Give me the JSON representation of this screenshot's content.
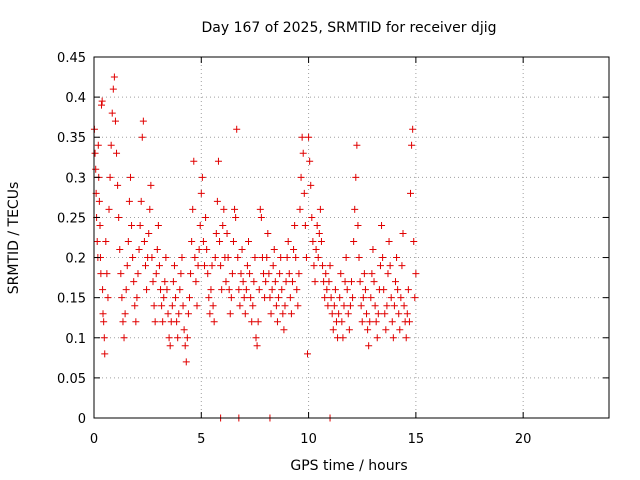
{
  "chart_data": {
    "type": "scatter",
    "title": "Day 167 of 2025, SRMTID for receiver djig",
    "xlabel": "GPS time / hours",
    "ylabel": "SRMTID / TECUs",
    "xlim": [
      0,
      24
    ],
    "ylim": [
      0,
      0.45
    ],
    "x_ticks": [
      0,
      5,
      10,
      15,
      20
    ],
    "x_tick_labels": [
      "0",
      "5",
      "10",
      "15",
      "20"
    ],
    "y_ticks": [
      0,
      0.05,
      0.1,
      0.15,
      0.2,
      0.25,
      0.3,
      0.35,
      0.4,
      0.45
    ],
    "y_tick_labels": [
      "0",
      "0.05",
      "0.1",
      "0.15",
      "0.2",
      "0.25",
      "0.3",
      "0.35",
      "0.4",
      "0.45"
    ],
    "grid": true,
    "marker": "plus",
    "colors": {
      "points": "#e00000",
      "grid": "#a0a0a0",
      "frame": "#000000"
    },
    "series": [
      {
        "points": [
          [
            0.02,
            0.36
          ],
          [
            0.05,
            0.33
          ],
          [
            0.08,
            0.31
          ],
          [
            0.1,
            0.28
          ],
          [
            0.12,
            0.25
          ],
          [
            0.15,
            0.22
          ],
          [
            0.18,
            0.2
          ],
          [
            0.2,
            0.34
          ],
          [
            0.22,
            0.3
          ],
          [
            0.25,
            0.27
          ],
          [
            0.28,
            0.24
          ],
          [
            0.3,
            0.2
          ],
          [
            0.32,
            0.18
          ],
          [
            0.35,
            0.39
          ],
          [
            0.38,
            0.395
          ],
          [
            0.4,
            0.16
          ],
          [
            0.42,
            0.13
          ],
          [
            0.45,
            0.12
          ],
          [
            0.48,
            0.1
          ],
          [
            0.5,
            0.08
          ],
          [
            0.55,
            0.22
          ],
          [
            0.6,
            0.18
          ],
          [
            0.65,
            0.15
          ],
          [
            0.7,
            0.26
          ],
          [
            0.75,
            0.3
          ],
          [
            0.8,
            0.34
          ],
          [
            0.85,
            0.38
          ],
          [
            0.9,
            0.41
          ],
          [
            0.95,
            0.425
          ],
          [
            1.0,
            0.37
          ],
          [
            1.05,
            0.33
          ],
          [
            1.1,
            0.29
          ],
          [
            1.15,
            0.25
          ],
          [
            1.2,
            0.21
          ],
          [
            1.25,
            0.18
          ],
          [
            1.3,
            0.15
          ],
          [
            1.35,
            0.12
          ],
          [
            1.4,
            0.1
          ],
          [
            1.45,
            0.13
          ],
          [
            1.5,
            0.16
          ],
          [
            1.55,
            0.19
          ],
          [
            1.6,
            0.22
          ],
          [
            1.65,
            0.27
          ],
          [
            1.7,
            0.3
          ],
          [
            1.75,
            0.24
          ],
          [
            1.8,
            0.2
          ],
          [
            1.85,
            0.17
          ],
          [
            1.9,
            0.14
          ],
          [
            1.95,
            0.12
          ],
          [
            2.0,
            0.15
          ],
          [
            2.05,
            0.18
          ],
          [
            2.1,
            0.21
          ],
          [
            2.15,
            0.24
          ],
          [
            2.2,
            0.27
          ],
          [
            2.25,
            0.35
          ],
          [
            2.3,
            0.37
          ],
          [
            2.35,
            0.22
          ],
          [
            2.4,
            0.19
          ],
          [
            2.45,
            0.16
          ],
          [
            2.5,
            0.2
          ],
          [
            2.55,
            0.23
          ],
          [
            2.6,
            0.26
          ],
          [
            2.65,
            0.29
          ],
          [
            2.7,
            0.2
          ],
          [
            2.75,
            0.17
          ],
          [
            2.8,
            0.14
          ],
          [
            2.85,
            0.12
          ],
          [
            2.9,
            0.18
          ],
          [
            2.95,
            0.21
          ],
          [
            3.0,
            0.24
          ],
          [
            3.05,
            0.19
          ],
          [
            3.1,
            0.16
          ],
          [
            3.15,
            0.14
          ],
          [
            3.2,
            0.12
          ],
          [
            3.25,
            0.15
          ],
          [
            3.3,
            0.17
          ],
          [
            3.35,
            0.2
          ],
          [
            3.4,
            0.16
          ],
          [
            3.45,
            0.13
          ],
          [
            3.5,
            0.1
          ],
          [
            3.55,
            0.09
          ],
          [
            3.6,
            0.12
          ],
          [
            3.65,
            0.14
          ],
          [
            3.7,
            0.17
          ],
          [
            3.75,
            0.19
          ],
          [
            3.8,
            0.15
          ],
          [
            3.85,
            0.12
          ],
          [
            3.9,
            0.1
          ],
          [
            3.95,
            0.13
          ],
          [
            4.0,
            0.16
          ],
          [
            4.05,
            0.18
          ],
          [
            4.1,
            0.2
          ],
          [
            4.15,
            0.14
          ],
          [
            4.2,
            0.11
          ],
          [
            4.25,
            0.09
          ],
          [
            4.3,
            0.07
          ],
          [
            4.35,
            0.1
          ],
          [
            4.4,
            0.13
          ],
          [
            4.45,
            0.15
          ],
          [
            4.5,
            0.18
          ],
          [
            4.55,
            0.22
          ],
          [
            4.6,
            0.26
          ],
          [
            4.65,
            0.32
          ],
          [
            4.7,
            0.2
          ],
          [
            4.75,
            0.17
          ],
          [
            4.8,
            0.14
          ],
          [
            4.85,
            0.19
          ],
          [
            4.9,
            0.21
          ],
          [
            4.95,
            0.24
          ],
          [
            5.0,
            0.28
          ],
          [
            5.05,
            0.3
          ],
          [
            5.1,
            0.22
          ],
          [
            5.15,
            0.19
          ],
          [
            5.2,
            0.25
          ],
          [
            5.25,
            0.21
          ],
          [
            5.3,
            0.18
          ],
          [
            5.35,
            0.15
          ],
          [
            5.4,
            0.13
          ],
          [
            5.45,
            0.16
          ],
          [
            5.5,
            0.19
          ],
          [
            5.55,
            0.14
          ],
          [
            5.6,
            0.12
          ],
          [
            5.65,
            0.2
          ],
          [
            5.7,
            0.23
          ],
          [
            5.75,
            0.27
          ],
          [
            5.8,
            0.32
          ],
          [
            5.85,
            0.22
          ],
          [
            5.9,
            0.19
          ],
          [
            5.95,
            0.16
          ],
          [
            6.0,
            0.24
          ],
          [
            6.05,
            0.26
          ],
          [
            6.1,
            0.2
          ],
          [
            6.15,
            0.17
          ],
          [
            6.2,
            0.23
          ],
          [
            6.25,
            0.2
          ],
          [
            6.3,
            0.16
          ],
          [
            6.35,
            0.13
          ],
          [
            6.4,
            0.15
          ],
          [
            6.45,
            0.18
          ],
          [
            6.5,
            0.22
          ],
          [
            6.55,
            0.26
          ],
          [
            6.6,
            0.25
          ],
          [
            6.65,
            0.36
          ],
          [
            6.7,
            0.2
          ],
          [
            6.75,
            0.16
          ],
          [
            6.8,
            0.14
          ],
          [
            6.85,
            0.18
          ],
          [
            6.9,
            0.21
          ],
          [
            6.95,
            0.17
          ],
          [
            7.0,
            0.15
          ],
          [
            7.05,
            0.13
          ],
          [
            7.1,
            0.16
          ],
          [
            7.15,
            0.19
          ],
          [
            7.2,
            0.22
          ],
          [
            7.25,
            0.18
          ],
          [
            7.3,
            0.15
          ],
          [
            7.35,
            0.12
          ],
          [
            7.4,
            0.14
          ],
          [
            7.45,
            0.17
          ],
          [
            7.5,
            0.2
          ],
          [
            7.55,
            0.1
          ],
          [
            7.6,
            0.09
          ],
          [
            7.65,
            0.12
          ],
          [
            7.7,
            0.16
          ],
          [
            7.75,
            0.26
          ],
          [
            7.8,
            0.25
          ],
          [
            7.85,
            0.2
          ],
          [
            7.9,
            0.18
          ],
          [
            7.95,
            0.15
          ],
          [
            8.0,
            0.17
          ],
          [
            8.05,
            0.2
          ],
          [
            8.1,
            0.23
          ],
          [
            8.15,
            0.18
          ],
          [
            8.2,
            0.15
          ],
          [
            8.25,
            0.13
          ],
          [
            8.3,
            0.16
          ],
          [
            8.35,
            0.19
          ],
          [
            8.4,
            0.21
          ],
          [
            8.45,
            0.17
          ],
          [
            8.5,
            0.14
          ],
          [
            8.55,
            0.12
          ],
          [
            8.6,
            0.15
          ],
          [
            8.65,
            0.18
          ],
          [
            8.7,
            0.2
          ],
          [
            8.75,
            0.16
          ],
          [
            8.8,
            0.13
          ],
          [
            8.85,
            0.11
          ],
          [
            8.9,
            0.14
          ],
          [
            8.95,
            0.17
          ],
          [
            9.0,
            0.2
          ],
          [
            9.05,
            0.22
          ],
          [
            9.1,
            0.18
          ],
          [
            9.15,
            0.15
          ],
          [
            9.2,
            0.13
          ],
          [
            9.25,
            0.17
          ],
          [
            9.3,
            0.21
          ],
          [
            9.35,
            0.24
          ],
          [
            9.4,
            0.2
          ],
          [
            9.45,
            0.16
          ],
          [
            9.5,
            0.14
          ],
          [
            9.55,
            0.18
          ],
          [
            9.6,
            0.26
          ],
          [
            9.65,
            0.3
          ],
          [
            9.7,
            0.35
          ],
          [
            9.75,
            0.33
          ],
          [
            9.8,
            0.28
          ],
          [
            9.85,
            0.24
          ],
          [
            9.9,
            0.2
          ],
          [
            9.95,
            0.08
          ],
          [
            10.0,
            0.35
          ],
          [
            10.05,
            0.32
          ],
          [
            10.1,
            0.29
          ],
          [
            10.15,
            0.25
          ],
          [
            10.2,
            0.22
          ],
          [
            10.25,
            0.19
          ],
          [
            10.3,
            0.17
          ],
          [
            10.35,
            0.21
          ],
          [
            10.4,
            0.24
          ],
          [
            10.45,
            0.2
          ],
          [
            10.5,
            0.23
          ],
          [
            10.55,
            0.26
          ],
          [
            10.6,
            0.22
          ],
          [
            10.65,
            0.19
          ],
          [
            10.7,
            0.17
          ],
          [
            10.75,
            0.15
          ],
          [
            10.8,
            0.18
          ],
          [
            10.85,
            0.16
          ],
          [
            10.9,
            0.14
          ],
          [
            10.95,
            0.17
          ],
          [
            11.0,
            0.19
          ],
          [
            11.05,
            0.15
          ],
          [
            11.1,
            0.13
          ],
          [
            11.15,
            0.11
          ],
          [
            11.2,
            0.14
          ],
          [
            11.25,
            0.16
          ],
          [
            11.3,
            0.12
          ],
          [
            11.35,
            0.1
          ],
          [
            11.4,
            0.13
          ],
          [
            11.45,
            0.15
          ],
          [
            11.5,
            0.18
          ],
          [
            11.55,
            0.12
          ],
          [
            11.6,
            0.1
          ],
          [
            11.65,
            0.14
          ],
          [
            11.7,
            0.17
          ],
          [
            11.75,
            0.2
          ],
          [
            11.8,
            0.16
          ],
          [
            11.85,
            0.13
          ],
          [
            11.9,
            0.11
          ],
          [
            11.95,
            0.14
          ],
          [
            12.0,
            0.17
          ],
          [
            12.05,
            0.15
          ],
          [
            12.1,
            0.22
          ],
          [
            12.15,
            0.26
          ],
          [
            12.2,
            0.3
          ],
          [
            12.25,
            0.34
          ],
          [
            12.3,
            0.24
          ],
          [
            12.35,
            0.2
          ],
          [
            12.4,
            0.17
          ],
          [
            12.45,
            0.14
          ],
          [
            12.5,
            0.12
          ],
          [
            12.55,
            0.15
          ],
          [
            12.6,
            0.18
          ],
          [
            12.65,
            0.16
          ],
          [
            12.7,
            0.13
          ],
          [
            12.75,
            0.11
          ],
          [
            12.8,
            0.09
          ],
          [
            12.85,
            0.12
          ],
          [
            12.9,
            0.15
          ],
          [
            12.95,
            0.18
          ],
          [
            13.0,
            0.21
          ],
          [
            13.05,
            0.17
          ],
          [
            13.1,
            0.14
          ],
          [
            13.15,
            0.12
          ],
          [
            13.2,
            0.1
          ],
          [
            13.25,
            0.13
          ],
          [
            13.3,
            0.16
          ],
          [
            13.35,
            0.19
          ],
          [
            13.4,
            0.24
          ],
          [
            13.45,
            0.2
          ],
          [
            13.5,
            0.16
          ],
          [
            13.55,
            0.13
          ],
          [
            13.6,
            0.11
          ],
          [
            13.65,
            0.14
          ],
          [
            13.7,
            0.18
          ],
          [
            13.75,
            0.22
          ],
          [
            13.8,
            0.19
          ],
          [
            13.85,
            0.15
          ],
          [
            13.9,
            0.12
          ],
          [
            13.95,
            0.1
          ],
          [
            14.0,
            0.14
          ],
          [
            14.05,
            0.17
          ],
          [
            14.1,
            0.2
          ],
          [
            14.15,
            0.16
          ],
          [
            14.2,
            0.13
          ],
          [
            14.25,
            0.11
          ],
          [
            14.3,
            0.15
          ],
          [
            14.35,
            0.19
          ],
          [
            14.4,
            0.23
          ],
          [
            14.45,
            0.14
          ],
          [
            14.5,
            0.12
          ],
          [
            14.55,
            0.1
          ],
          [
            14.6,
            0.13
          ],
          [
            14.65,
            0.16
          ],
          [
            14.7,
            0.12
          ],
          [
            14.75,
            0.28
          ],
          [
            14.8,
            0.34
          ],
          [
            14.85,
            0.36
          ],
          [
            14.9,
            0.22
          ],
          [
            14.95,
            0.15
          ],
          [
            15.0,
            0.18
          ]
        ]
      },
      {
        "points": [
          [
            5.9,
            0.0
          ],
          [
            6.75,
            0.0
          ],
          [
            8.2,
            0.0
          ],
          [
            11.0,
            0.0
          ]
        ]
      }
    ]
  }
}
